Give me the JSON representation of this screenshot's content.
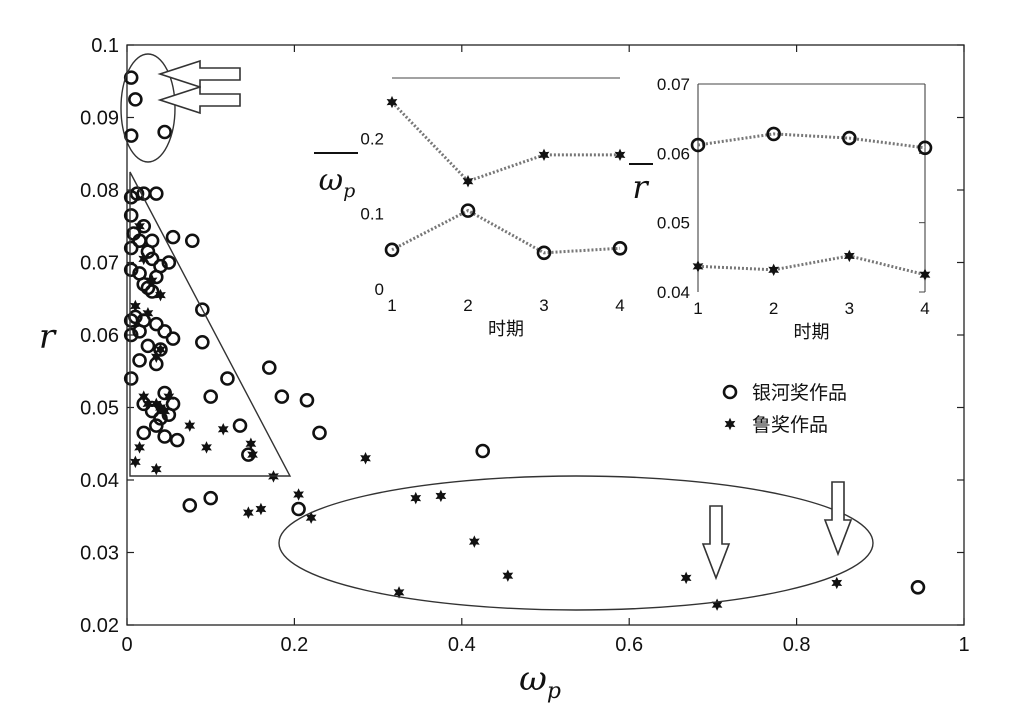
{
  "chart_data": {
    "main": {
      "type": "scatter",
      "xlabel": "ω",
      "xlabel_sub": "p",
      "ylabel": "r",
      "xlim": [
        0,
        1
      ],
      "ylim": [
        0.02,
        0.1
      ],
      "xticks": [
        "0",
        "0.2",
        "0.4",
        "0.6",
        "0.8",
        "1"
      ],
      "yticks": [
        "0.02",
        "0.03",
        "0.04",
        "0.05",
        "0.06",
        "0.07",
        "0.08",
        "0.09",
        "0.1"
      ],
      "legend_position": "right",
      "series": [
        {
          "name": "银河奖作品",
          "marker": "circle",
          "points": [
            [
              0.005,
              0.0955
            ],
            [
              0.01,
              0.0925
            ],
            [
              0.005,
              0.0875
            ],
            [
              0.045,
              0.088
            ],
            [
              0.005,
              0.079
            ],
            [
              0.012,
              0.0795
            ],
            [
              0.02,
              0.0795
            ],
            [
              0.035,
              0.0795
            ],
            [
              0.005,
              0.0765
            ],
            [
              0.02,
              0.075
            ],
            [
              0.008,
              0.074
            ],
            [
              0.015,
              0.073
            ],
            [
              0.03,
              0.073
            ],
            [
              0.055,
              0.0735
            ],
            [
              0.078,
              0.073
            ],
            [
              0.005,
              0.072
            ],
            [
              0.025,
              0.0715
            ],
            [
              0.03,
              0.0705
            ],
            [
              0.05,
              0.07
            ],
            [
              0.005,
              0.069
            ],
            [
              0.04,
              0.0695
            ],
            [
              0.015,
              0.0685
            ],
            [
              0.035,
              0.068
            ],
            [
              0.02,
              0.067
            ],
            [
              0.025,
              0.0665
            ],
            [
              0.03,
              0.066
            ],
            [
              0.005,
              0.062
            ],
            [
              0.01,
              0.0625
            ],
            [
              0.02,
              0.062
            ],
            [
              0.035,
              0.0615
            ],
            [
              0.015,
              0.0605
            ],
            [
              0.045,
              0.0605
            ],
            [
              0.055,
              0.0595
            ],
            [
              0.09,
              0.0635
            ],
            [
              0.005,
              0.06
            ],
            [
              0.025,
              0.0585
            ],
            [
              0.04,
              0.058
            ],
            [
              0.09,
              0.059
            ],
            [
              0.015,
              0.0565
            ],
            [
              0.035,
              0.056
            ],
            [
              0.005,
              0.054
            ],
            [
              0.12,
              0.054
            ],
            [
              0.045,
              0.052
            ],
            [
              0.1,
              0.0515
            ],
            [
              0.02,
              0.0505
            ],
            [
              0.055,
              0.0505
            ],
            [
              0.03,
              0.0495
            ],
            [
              0.05,
              0.049
            ],
            [
              0.04,
              0.0485
            ],
            [
              0.035,
              0.0475
            ],
            [
              0.02,
              0.0465
            ],
            [
              0.045,
              0.046
            ],
            [
              0.06,
              0.0455
            ],
            [
              0.135,
              0.0475
            ],
            [
              0.145,
              0.0435
            ],
            [
              0.17,
              0.0555
            ],
            [
              0.185,
              0.0515
            ],
            [
              0.215,
              0.051
            ],
            [
              0.23,
              0.0465
            ],
            [
              0.425,
              0.044
            ],
            [
              0.075,
              0.0365
            ],
            [
              0.1,
              0.0375
            ],
            [
              0.205,
              0.036
            ],
            [
              0.945,
              0.0252
            ]
          ]
        },
        {
          "name": "鲁奖作品",
          "marker": "star",
          "points": [
            [
              0.015,
              0.075
            ],
            [
              0.02,
              0.0705
            ],
            [
              0.03,
              0.0675
            ],
            [
              0.04,
              0.0655
            ],
            [
              0.01,
              0.064
            ],
            [
              0.025,
              0.063
            ],
            [
              0.035,
              0.057
            ],
            [
              0.04,
              0.058
            ],
            [
              0.02,
              0.0515
            ],
            [
              0.025,
              0.0505
            ],
            [
              0.035,
              0.0505
            ],
            [
              0.04,
              0.05
            ],
            [
              0.05,
              0.0515
            ],
            [
              0.045,
              0.0495
            ],
            [
              0.075,
              0.0475
            ],
            [
              0.015,
              0.0445
            ],
            [
              0.01,
              0.0425
            ],
            [
              0.035,
              0.0415
            ],
            [
              0.095,
              0.0445
            ],
            [
              0.115,
              0.047
            ],
            [
              0.148,
              0.045
            ],
            [
              0.15,
              0.0435
            ],
            [
              0.145,
              0.0355
            ],
            [
              0.16,
              0.036
            ],
            [
              0.175,
              0.0405
            ],
            [
              0.205,
              0.038
            ],
            [
              0.22,
              0.0348
            ],
            [
              0.285,
              0.043
            ],
            [
              0.325,
              0.0245
            ],
            [
              0.345,
              0.0375
            ],
            [
              0.375,
              0.0378
            ],
            [
              0.415,
              0.0315
            ],
            [
              0.455,
              0.0268
            ],
            [
              0.668,
              0.0265
            ],
            [
              0.705,
              0.0228
            ],
            [
              0.848,
              0.0258
            ]
          ]
        }
      ]
    },
    "inset_left": {
      "type": "line",
      "ylabel": "ω",
      "ylabel_sub": "p",
      "xlabel": "时期",
      "xticks": [
        "1",
        "2",
        "3",
        "4"
      ],
      "yticks": [
        "0",
        "0.1",
        "0.2"
      ],
      "x": [
        1,
        2,
        3,
        4
      ],
      "ylim": [
        0,
        0.28
      ],
      "series": [
        {
          "name": "鲁奖作品",
          "marker": "star",
          "values": [
            0.248,
            0.143,
            0.178,
            0.178
          ]
        },
        {
          "name": "银河奖作品",
          "marker": "circle",
          "values": [
            0.052,
            0.104,
            0.048,
            0.054
          ]
        }
      ]
    },
    "inset_right": {
      "type": "line",
      "ylabel": "r",
      "xlabel": "时期",
      "xticks": [
        "1",
        "2",
        "3",
        "4"
      ],
      "yticks": [
        "0.04",
        "0.05",
        "0.06",
        "0.07"
      ],
      "x": [
        1,
        2,
        3,
        4
      ],
      "ylim": [
        0.04,
        0.07
      ],
      "series": [
        {
          "name": "银河奖作品",
          "marker": "circle",
          "values": [
            0.0612,
            0.0628,
            0.0622,
            0.0608
          ]
        },
        {
          "name": "鲁奖作品",
          "marker": "star",
          "values": [
            0.0437,
            0.0432,
            0.0452,
            0.0425
          ]
        }
      ]
    }
  },
  "legend": {
    "items": [
      {
        "label": "银河奖作品",
        "marker": "circle"
      },
      {
        "label": "鲁奖作品",
        "marker": "star"
      }
    ]
  }
}
